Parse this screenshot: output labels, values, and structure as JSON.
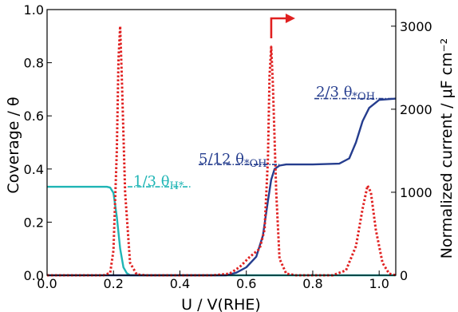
{
  "chart_data": {
    "type": "line",
    "xlabel": "U / V(RHE)",
    "ylabel_left": "Coverage / θ",
    "ylabel_right": "Normalized current / μF cm⁻²",
    "xlim": [
      0.0,
      1.05
    ],
    "ylim_left": [
      0.0,
      1.0
    ],
    "ylim_right": [
      0,
      3200
    ],
    "x_ticks": [
      "0.0",
      "0.2",
      "0.4",
      "0.6",
      "0.8",
      "1.0"
    ],
    "y_left_ticks": [
      "0.0",
      "0.2",
      "0.4",
      "0.6",
      "0.8",
      "1.0"
    ],
    "y_right_ticks": [
      "0",
      "1000",
      "2000",
      "3000"
    ],
    "grid": false,
    "series": [
      {
        "axis": "left",
        "color": "#1fb5b5",
        "style": "solid",
        "points": [
          [
            0.0,
            0.333
          ],
          [
            0.18,
            0.333
          ],
          [
            0.19,
            0.33
          ],
          [
            0.2,
            0.31
          ],
          [
            0.21,
            0.22
          ],
          [
            0.22,
            0.1
          ],
          [
            0.23,
            0.03
          ],
          [
            0.24,
            0.008
          ],
          [
            0.25,
            0.0
          ],
          [
            1.05,
            0.0
          ]
        ]
      },
      {
        "axis": "left",
        "color": "#253d8e",
        "style": "solid",
        "points": [
          [
            0.0,
            0.0
          ],
          [
            0.54,
            0.0
          ],
          [
            0.57,
            0.01
          ],
          [
            0.6,
            0.03
          ],
          [
            0.63,
            0.07
          ],
          [
            0.65,
            0.15
          ],
          [
            0.665,
            0.28
          ],
          [
            0.675,
            0.36
          ],
          [
            0.685,
            0.4
          ],
          [
            0.7,
            0.413
          ],
          [
            0.72,
            0.417
          ],
          [
            0.8,
            0.417
          ],
          [
            0.88,
            0.42
          ],
          [
            0.91,
            0.44
          ],
          [
            0.93,
            0.5
          ],
          [
            0.95,
            0.58
          ],
          [
            0.97,
            0.63
          ],
          [
            1.0,
            0.66
          ],
          [
            1.05,
            0.665
          ]
        ]
      },
      {
        "axis": "right",
        "color": "#e02020",
        "style": "dotted",
        "points": [
          [
            0.0,
            0
          ],
          [
            0.17,
            0
          ],
          [
            0.19,
            30
          ],
          [
            0.2,
            300
          ],
          [
            0.21,
            1500
          ],
          [
            0.215,
            2600
          ],
          [
            0.22,
            3000
          ],
          [
            0.225,
            2400
          ],
          [
            0.235,
            1000
          ],
          [
            0.25,
            150
          ],
          [
            0.27,
            10
          ],
          [
            0.3,
            0
          ],
          [
            0.5,
            0
          ],
          [
            0.55,
            20
          ],
          [
            0.58,
            100
          ],
          [
            0.61,
            220
          ],
          [
            0.64,
            320
          ],
          [
            0.655,
            550
          ],
          [
            0.665,
            1400
          ],
          [
            0.67,
            2400
          ],
          [
            0.675,
            2750
          ],
          [
            0.68,
            2300
          ],
          [
            0.69,
            1000
          ],
          [
            0.7,
            200
          ],
          [
            0.72,
            20
          ],
          [
            0.75,
            0
          ],
          [
            0.86,
            0
          ],
          [
            0.9,
            60
          ],
          [
            0.93,
            350
          ],
          [
            0.95,
            800
          ],
          [
            0.965,
            1080
          ],
          [
            0.975,
            1000
          ],
          [
            0.99,
            550
          ],
          [
            1.01,
            150
          ],
          [
            1.03,
            20
          ],
          [
            1.05,
            0
          ]
        ]
      }
    ],
    "annotations": [
      {
        "text": "1/3 θ",
        "sub": "H*",
        "color": "#1fb5b5"
      },
      {
        "text": "5/12 θ",
        "sub": "*OH",
        "color": "#253d8e"
      },
      {
        "text": "2/3 θ",
        "sub": "*OH",
        "color": "#253d8e"
      }
    ],
    "arrow_color": "#e02020"
  }
}
